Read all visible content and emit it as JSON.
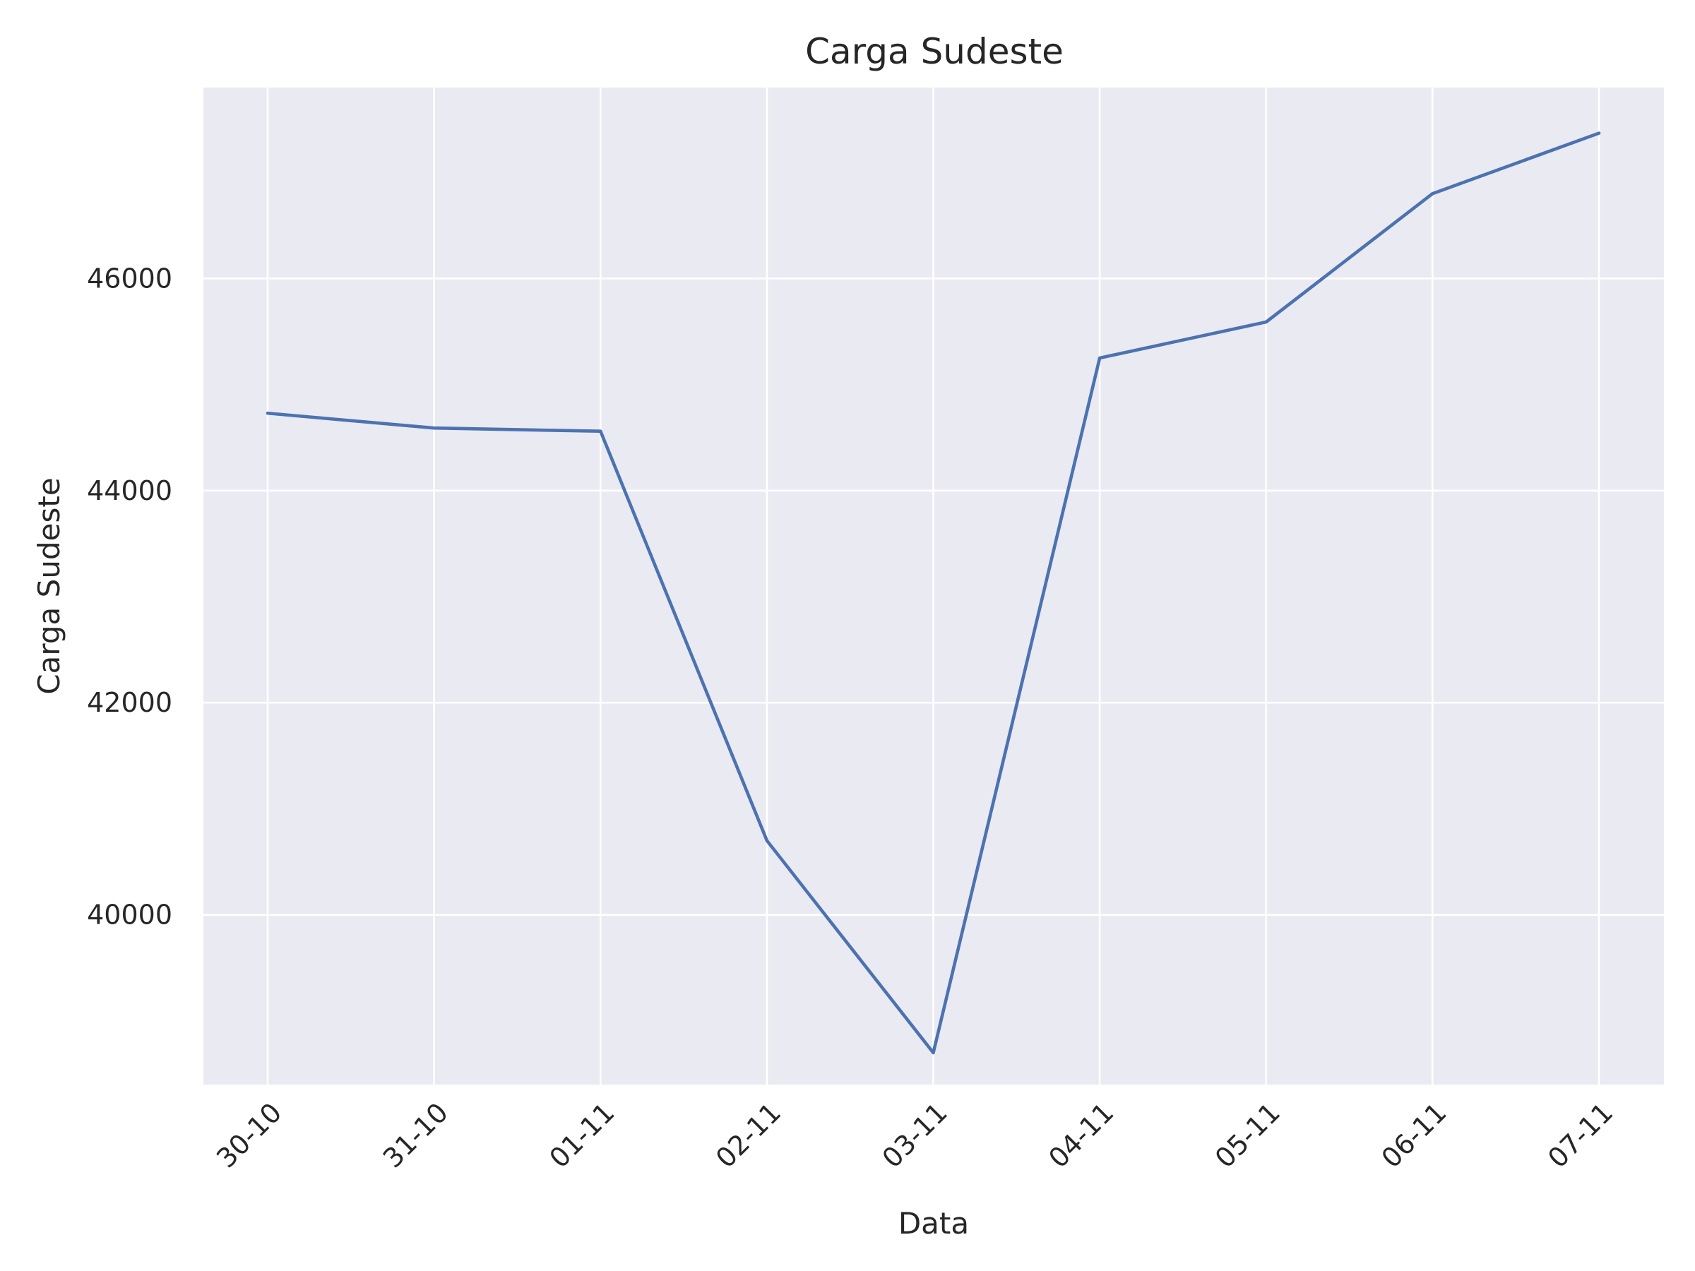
{
  "chart_data": {
    "type": "line",
    "title": "Carga Sudeste",
    "xlabel": "Data",
    "ylabel": "Carga Sudeste",
    "categories": [
      "30-10",
      "31-10",
      "01-11",
      "02-11",
      "03-11",
      "04-11",
      "05-11",
      "06-11",
      "07-11"
    ],
    "series": [
      {
        "values": [
          44730,
          44590,
          44560,
          40700,
          38700,
          45250,
          45590,
          46800,
          47370
        ]
      }
    ],
    "yticks": [
      40000,
      42000,
      44000,
      46000
    ],
    "ylim": [
      38400,
      47800
    ],
    "grid": true,
    "legend": "none",
    "colors": {
      "background": "#eaeaf2",
      "grid": "#ffffff",
      "line": "#4c72b0",
      "text": "#262626"
    }
  }
}
